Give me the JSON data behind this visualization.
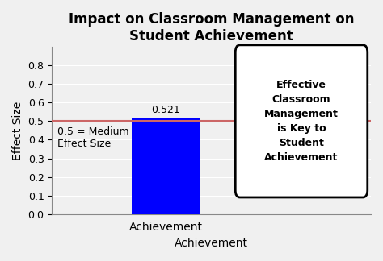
{
  "title": "Impact on Classroom Management on\nStudent Achievement",
  "bar_category": "Achievement",
  "bar_value": 0.521,
  "bar_color": "#0000FF",
  "bar_label": "0.521",
  "hline_value": 0.5,
  "hline_color": "#CC6666",
  "hline_label": "0.5 = Medium\nEffect Size",
  "xlabel": "Achievement",
  "ylabel": "Effect Size",
  "ylim": [
    0,
    0.9
  ],
  "yticks": [
    0,
    0.1,
    0.2,
    0.3,
    0.4,
    0.5,
    0.6,
    0.7,
    0.8
  ],
  "annotation_text": "Effective\nClassroom\nManagement\nis Key to\nStudent\nAchievement",
  "title_fontsize": 12,
  "axis_label_fontsize": 10,
  "tick_fontsize": 9,
  "bar_label_fontsize": 9,
  "annotation_fontsize": 9,
  "hline_label_fontsize": 9,
  "background_color": "#F0F0F0"
}
